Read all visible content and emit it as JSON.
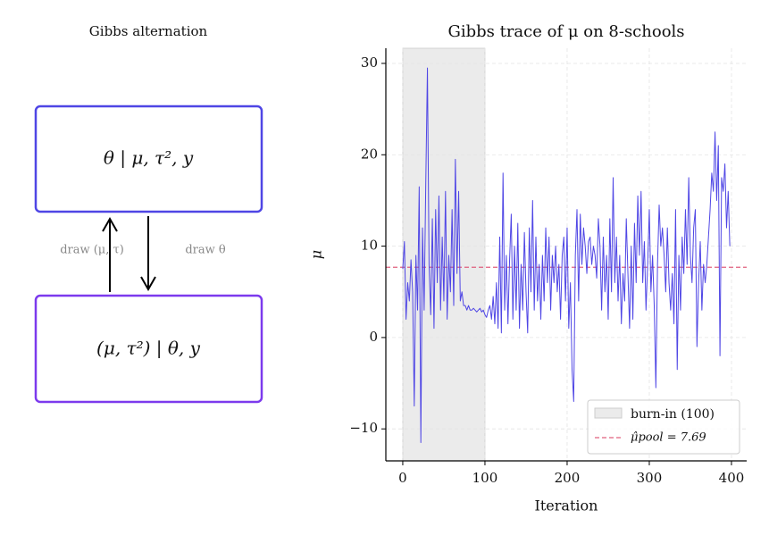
{
  "diagram": {
    "title": "Gibbs alternation",
    "nodes": [
      {
        "label": "θ | μ, τ², y"
      },
      {
        "label": "(μ, τ²) | θ, y"
      }
    ],
    "edges": [
      {
        "label": "draw (μ, τ)"
      },
      {
        "label": "draw θ"
      }
    ]
  },
  "chart_data": {
    "type": "line",
    "title": "Gibbs trace of μ on 8-schools",
    "x_label": "Iteration",
    "y_label": "μ",
    "color": "#4f46e5",
    "x": [
      0,
      2,
      4,
      6,
      8,
      10,
      12,
      14,
      16,
      18,
      20,
      22,
      24,
      26,
      28,
      30,
      32,
      34,
      36,
      38,
      40,
      42,
      44,
      46,
      48,
      50,
      52,
      54,
      56,
      58,
      60,
      62,
      64,
      66,
      68,
      70,
      72,
      74,
      76,
      78,
      80,
      82,
      84,
      86,
      88,
      90,
      92,
      94,
      96,
      98,
      100,
      102,
      104,
      106,
      108,
      110,
      112,
      114,
      116,
      118,
      120,
      122,
      124,
      126,
      128,
      130,
      132,
      134,
      136,
      138,
      140,
      142,
      144,
      146,
      148,
      150,
      152,
      154,
      156,
      158,
      160,
      162,
      164,
      166,
      168,
      170,
      172,
      174,
      176,
      178,
      180,
      182,
      184,
      186,
      188,
      190,
      192,
      194,
      196,
      198,
      200,
      202,
      204,
      206,
      208,
      210,
      212,
      214,
      216,
      218,
      220,
      222,
      224,
      226,
      228,
      230,
      232,
      234,
      236,
      238,
      240,
      242,
      244,
      246,
      248,
      250,
      252,
      254,
      256,
      258,
      260,
      262,
      264,
      266,
      268,
      270,
      272,
      274,
      276,
      278,
      280,
      282,
      284,
      286,
      288,
      290,
      292,
      294,
      296,
      298,
      300,
      302,
      304,
      306,
      308,
      310,
      312,
      314,
      316,
      318,
      320,
      322,
      324,
      326,
      328,
      330,
      332,
      334,
      336,
      338,
      340,
      342,
      344,
      346,
      348,
      350,
      352,
      354,
      356,
      358,
      360,
      362,
      364,
      366,
      368,
      370,
      372,
      374,
      376,
      378,
      380,
      382,
      384,
      386,
      388,
      390,
      392,
      394,
      396,
      398
    ],
    "values": [
      7.5,
      10.5,
      2,
      6,
      4,
      8.5,
      5,
      -7.5,
      9,
      3,
      16.5,
      -11.5,
      12,
      3,
      17,
      29.5,
      8,
      2.5,
      13,
      1,
      14,
      6,
      15.5,
      3,
      11,
      4,
      16,
      2,
      9,
      5,
      14,
      3.5,
      19.5,
      7,
      16,
      4,
      5,
      3.5,
      3.5,
      3,
      3.5,
      3,
      3,
      3.2,
      3,
      2.8,
      3,
      3.2,
      2.8,
      3,
      2.5,
      2.2,
      3,
      3.5,
      2,
      4.5,
      1.5,
      6,
      1,
      11,
      0.5,
      18,
      3,
      9,
      1.5,
      8.5,
      13.5,
      2,
      10,
      3,
      12.5,
      1,
      8,
      3,
      11.5,
      5,
      0.5,
      12,
      5,
      15,
      3,
      11,
      4,
      8,
      2,
      9,
      4,
      12,
      6,
      11,
      3,
      9,
      6,
      10,
      5,
      8,
      2,
      9,
      11,
      4,
      12,
      1,
      6,
      -3.5,
      -7,
      9,
      14,
      4,
      13.5,
      8,
      12,
      10,
      7,
      10.5,
      11,
      8,
      10,
      9,
      6.5,
      13,
      10,
      3,
      11,
      5,
      9,
      2,
      13,
      5,
      17.5,
      6,
      11,
      4,
      9,
      1.5,
      7,
      4,
      13,
      7,
      1,
      10,
      2,
      12.5,
      6,
      15.5,
      9,
      16,
      6,
      10.5,
      3,
      8,
      14,
      5,
      9,
      3.5,
      -5.5,
      8,
      14.5,
      10,
      12,
      9,
      5,
      12,
      6,
      3,
      7,
      1.5,
      14,
      -3.5,
      9,
      3,
      11,
      7,
      14,
      8,
      17.5,
      9,
      6,
      12,
      14,
      -1,
      6,
      10.5,
      3,
      8,
      6,
      8,
      11,
      14,
      18,
      16,
      22.5,
      15,
      21,
      -2,
      17.5,
      16,
      19,
      12,
      16,
      10
    ],
    "xlim": [
      -20.6,
      418.5
    ],
    "ylim": [
      -13.5,
      31.66
    ],
    "xticks": [
      0,
      100,
      200,
      300,
      400
    ],
    "yticks": [
      {
        "value": -10,
        "label": "−10"
      },
      0,
      10,
      20,
      30
    ],
    "grid": true,
    "legend": "lower right",
    "burn_in": {
      "range": [
        0,
        100
      ],
      "label": "burn-in (100)",
      "color": "#ebebeb"
    },
    "reference_line": {
      "value": 7.69,
      "label": "μ̂pool = 7.69",
      "color": "#e0607e"
    }
  }
}
